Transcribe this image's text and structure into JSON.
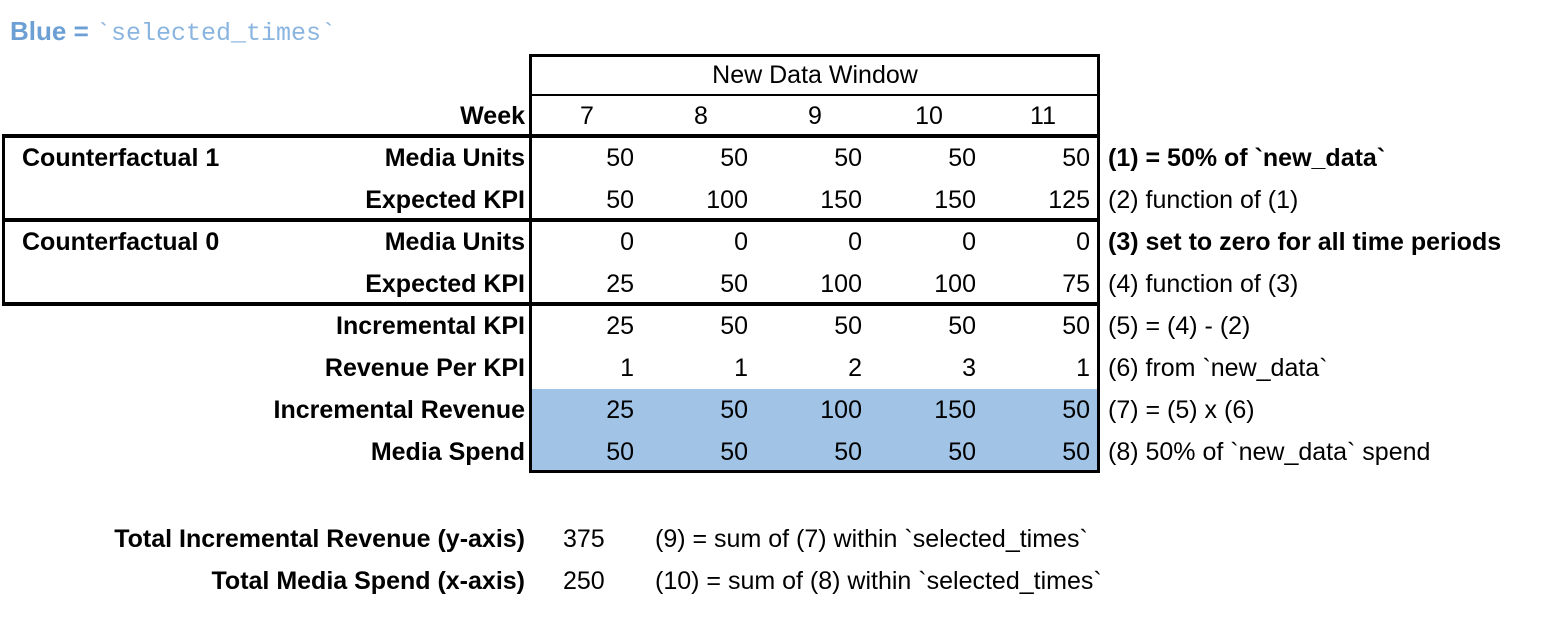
{
  "title": {
    "prefix": "Blue = ",
    "code": "`selected_times`"
  },
  "colors": {
    "highlight": "#A0C3E6",
    "title_text": "#6C9FD4",
    "title_code": "#8AB5E0",
    "border": "#000000"
  },
  "table": {
    "window_header": "New Data Window",
    "week_label": "Week",
    "weeks": [
      "7",
      "8",
      "9",
      "10",
      "11"
    ],
    "groups": [
      {
        "label": "Counterfactual 1"
      },
      {
        "label": "Counterfactual 0"
      }
    ],
    "rows": [
      {
        "label": "Media Units",
        "values": [
          50,
          50,
          50,
          50,
          50
        ],
        "note": "(1) = 50% of `new_data`"
      },
      {
        "label": "Expected KPI",
        "values": [
          50,
          100,
          150,
          150,
          125
        ],
        "note": "(2) function of (1)"
      },
      {
        "label": "Media Units",
        "values": [
          0,
          0,
          0,
          0,
          0
        ],
        "note": "(3) set to zero for all time periods"
      },
      {
        "label": "Expected KPI",
        "values": [
          25,
          50,
          100,
          100,
          75
        ],
        "note": "(4) function of (3)"
      },
      {
        "label": "Incremental KPI",
        "values": [
          25,
          50,
          50,
          50,
          50
        ],
        "note": "(5) = (4) - (2)"
      },
      {
        "label": "Revenue Per KPI",
        "values": [
          1,
          1,
          2,
          3,
          1
        ],
        "note": "(6) from `new_data`"
      },
      {
        "label": "Incremental Revenue",
        "values": [
          25,
          50,
          100,
          150,
          50
        ],
        "note": "(7) = (5) x (6)"
      },
      {
        "label": "Media Spend",
        "values": [
          50,
          50,
          50,
          50,
          50
        ],
        "note": "(8) 50% of `new_data` spend"
      }
    ]
  },
  "totals": [
    {
      "label": "Total Incremental Revenue (y-axis)",
      "value": "375",
      "note": "(9) = sum of (7) within `selected_times`"
    },
    {
      "label": "Total Media Spend (x-axis)",
      "value": "250",
      "note": "(10) = sum of (8) within `selected_times`"
    }
  ]
}
